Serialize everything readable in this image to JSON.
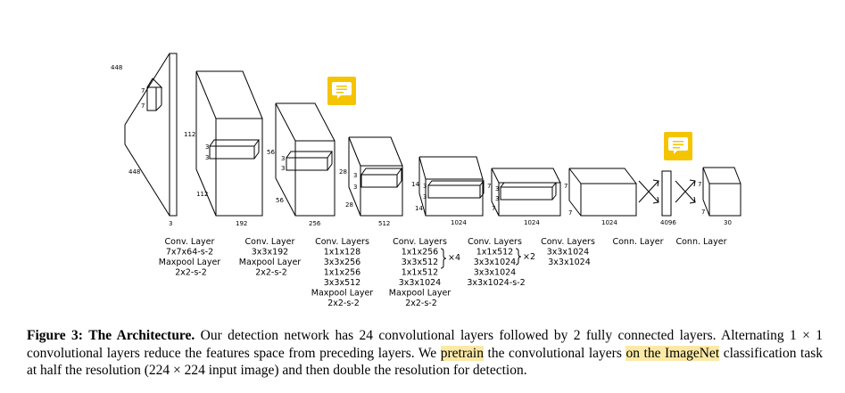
{
  "figure": {
    "dims": {
      "input_h": "448",
      "input_w": "448",
      "input_d": "3",
      "k1a": "7",
      "k1b": "7",
      "c1_h": "112",
      "c1_w": "112",
      "c1_d": "192",
      "k2a": "3",
      "k2b": "3",
      "c2_h": "56",
      "c2_w": "56",
      "c2_d": "256",
      "k3a": "3",
      "k3b": "3",
      "c3_h": "28",
      "c3_w": "28",
      "c3_d": "512",
      "k4a": "3",
      "k4b": "3",
      "c4_h": "14",
      "c4_w": "14",
      "c4_d": "1024",
      "k5a": "3",
      "k5b": "3",
      "c5_a": "7",
      "c5_b": "7",
      "c5_d": "1024",
      "k6a": "3",
      "k6b": "3",
      "c6_a": "7",
      "c6_b": "7",
      "c6_d": "1024",
      "fc1": "4096",
      "out_a": "7",
      "out_b": "7",
      "out_d": "30"
    },
    "labels": [
      {
        "lines": [
          "Conv. Layer",
          "7x7x64-s-2",
          "Maxpool Layer",
          "2x2-s-2"
        ]
      },
      {
        "lines": [
          "Conv. Layer",
          "3x3x192",
          "Maxpool Layer",
          "2x2-s-2"
        ]
      },
      {
        "lines": [
          "Conv. Layers",
          "1x1x128",
          "3x3x256",
          "1x1x256",
          "3x3x512",
          "Maxpool Layer",
          "2x2-s-2"
        ]
      },
      {
        "lines": [
          "Conv. Layers",
          "1x1x256",
          "3x3x512",
          "1x1x512",
          "3x3x1024",
          "Maxpool Layer",
          "2x2-s-2"
        ]
      },
      {
        "lines": [
          "Conv. Layers",
          "1x1x512",
          "3x3x1024",
          "3x3x1024",
          "3x3x1024-s-2"
        ]
      },
      {
        "lines": [
          "Conv. Layers",
          "3x3x1024",
          "3x3x1024"
        ]
      },
      {
        "lines": [
          "Conn. Layer"
        ]
      },
      {
        "lines": [
          "Conn. Layer"
        ]
      }
    ],
    "repeat_x4": "×4",
    "repeat_x2": "×2",
    "note_icon_color": "#f5c400"
  },
  "caption": {
    "label": "Figure 3:",
    "title": "The Architecture.",
    "text_1": "Our detection network has 24 convolutional layers followed by 2 fully connected layers. Alternating 1 × 1 convolutional layers reduce the features space from preceding layers. We ",
    "highlight_1": "pretrain",
    "text_2": " the convolutional layers ",
    "highlight_2": "on the ImageNet",
    "text_3": " classification task at half the resolution (224 × 224 input image) and then double the resolution for detection."
  }
}
